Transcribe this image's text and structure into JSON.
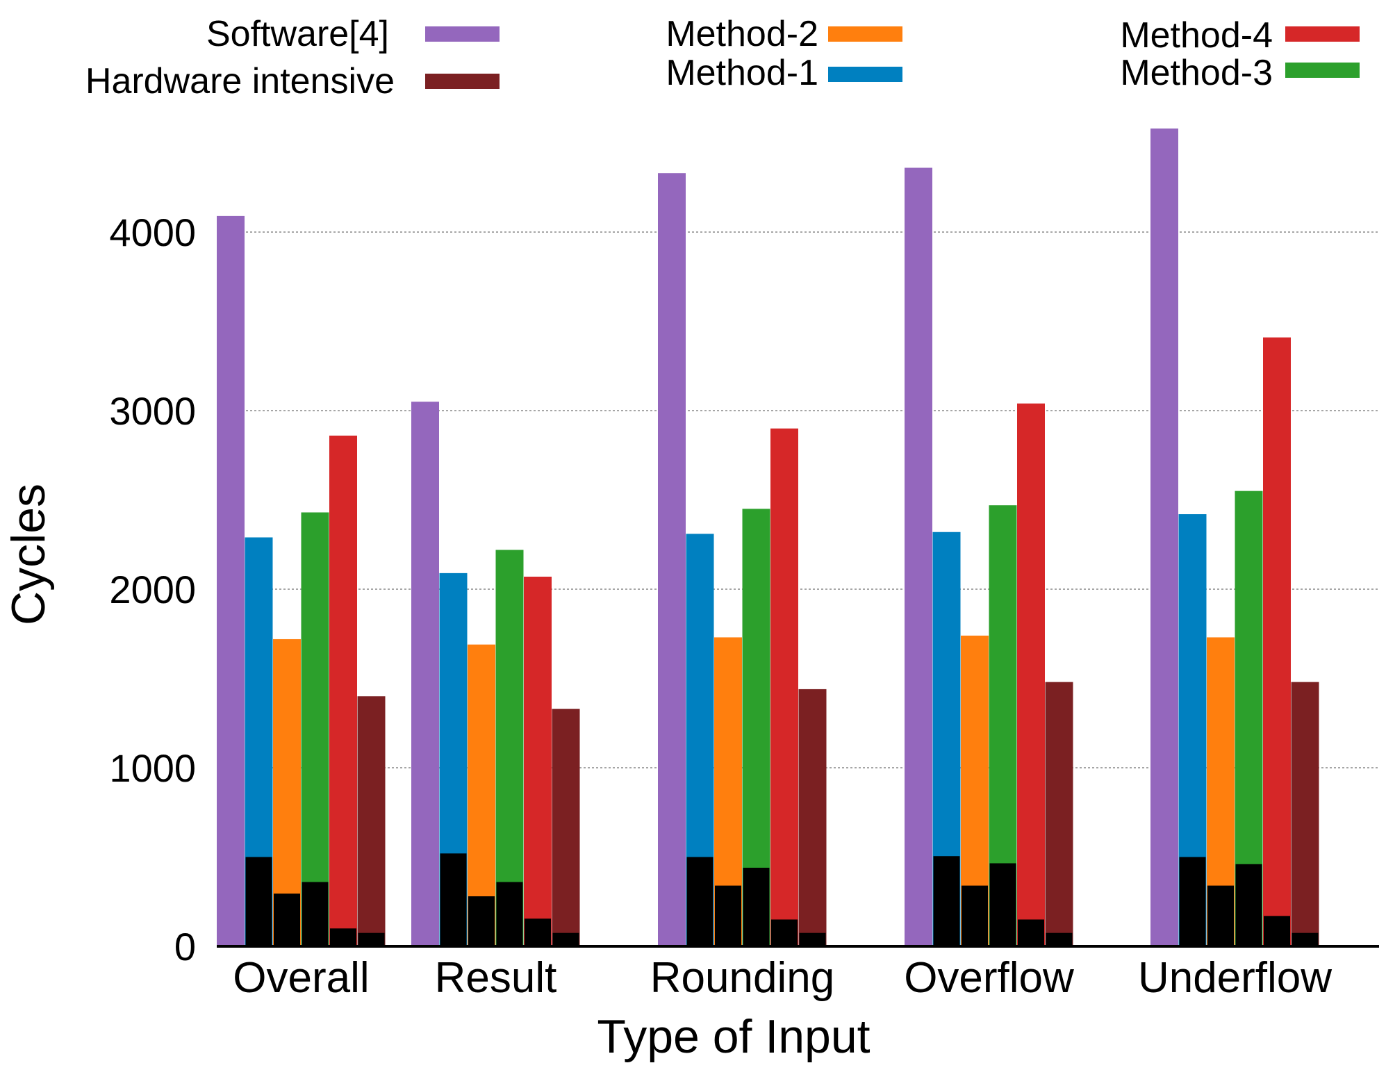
{
  "chart_data": {
    "type": "bar",
    "title": "",
    "xlabel": "Type of Input",
    "ylabel": "Cycles",
    "ylim": [
      0,
      4600
    ],
    "yticks": [
      0,
      1000,
      2000,
      3000,
      4000
    ],
    "grid": "horizontal-dotted",
    "categories": [
      "Overall",
      "Result",
      "Rounding",
      "Overflow",
      "Underflow"
    ],
    "series": [
      {
        "name": "Software[4]",
        "color": "#9467bd",
        "values": [
          4090,
          3050,
          4330,
          4360,
          4580
        ],
        "inner_values": [
          0,
          0,
          0,
          0,
          0
        ]
      },
      {
        "name": "Method-1",
        "color": "#0080c0",
        "values": [
          2290,
          2090,
          2310,
          2320,
          2420
        ],
        "inner_values": [
          500,
          520,
          500,
          505,
          500
        ]
      },
      {
        "name": "Method-2",
        "color": "#ff7f0e",
        "values": [
          1720,
          1690,
          1730,
          1740,
          1730
        ],
        "inner_values": [
          295,
          280,
          340,
          340,
          340
        ]
      },
      {
        "name": "Method-3",
        "color": "#2ca02c",
        "values": [
          2430,
          2220,
          2450,
          2470,
          2550
        ],
        "inner_values": [
          360,
          360,
          440,
          465,
          460
        ]
      },
      {
        "name": "Method-4",
        "color": "#d62728",
        "values": [
          2860,
          2070,
          2900,
          3040,
          3410
        ],
        "inner_values": [
          100,
          155,
          150,
          150,
          170
        ]
      },
      {
        "name": "Hardware intensive",
        "color": "#7b2022",
        "values": [
          1400,
          1330,
          1440,
          1480,
          1480
        ],
        "inner_values": [
          75,
          75,
          75,
          75,
          75
        ]
      }
    ],
    "inner_bar_color": "#000000",
    "legend": [
      {
        "label": "Software[4]",
        "color": "#9467bd"
      },
      {
        "label": "Hardware  intensive",
        "color": "#7b2022"
      },
      {
        "label": "Method-2",
        "color": "#ff7f0e"
      },
      {
        "label": "Method-1",
        "color": "#0080c0"
      },
      {
        "label": "Method-4",
        "color": "#d62728"
      },
      {
        "label": "Method-3",
        "color": "#2ca02c"
      }
    ]
  }
}
